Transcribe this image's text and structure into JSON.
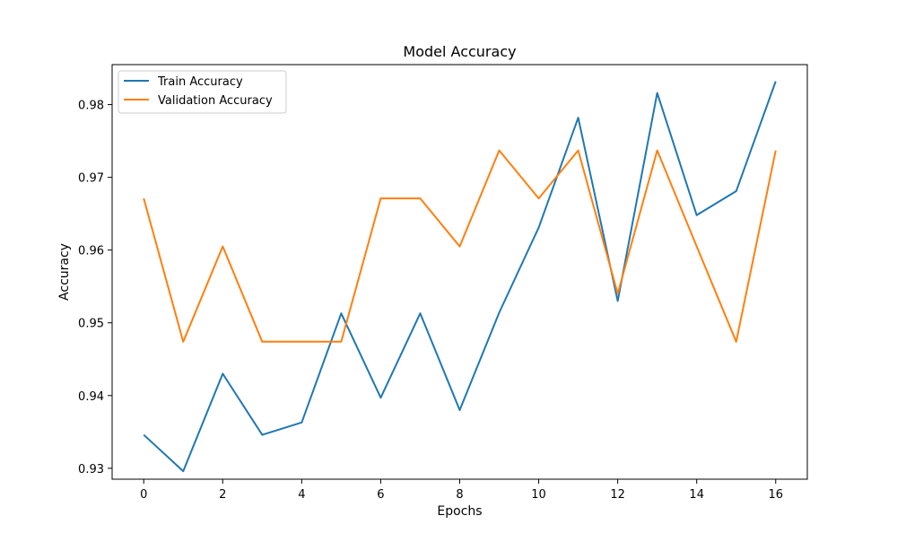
{
  "chart_data": {
    "type": "line",
    "title": "Model Accuracy",
    "xlabel": "Epochs",
    "ylabel": "Accuracy",
    "x": [
      0,
      1,
      2,
      3,
      4,
      5,
      6,
      7,
      8,
      9,
      10,
      11,
      12,
      13,
      14,
      15,
      16
    ],
    "xlim": [
      -0.8,
      16.8
    ],
    "ylim": [
      0.9285,
      0.9855
    ],
    "xticks": [
      0,
      2,
      4,
      6,
      8,
      10,
      12,
      14,
      16
    ],
    "xtick_labels": [
      "0",
      "2",
      "4",
      "6",
      "8",
      "10",
      "12",
      "14",
      "16"
    ],
    "yticks": [
      0.93,
      0.94,
      0.95,
      0.96,
      0.97,
      0.98
    ],
    "ytick_labels": [
      "0.93",
      "0.94",
      "0.95",
      "0.96",
      "0.97",
      "0.98"
    ],
    "grid": false,
    "legend_position": "top-left",
    "series": [
      {
        "name": "Train Accuracy",
        "color": "#1f77b4",
        "values": [
          0.9346,
          0.9296,
          0.943,
          0.9346,
          0.9363,
          0.9513,
          0.9397,
          0.9513,
          0.938,
          0.9514,
          0.9631,
          0.9782,
          0.953,
          0.9816,
          0.9648,
          0.9681,
          0.9832
        ]
      },
      {
        "name": "Validation Accuracy",
        "color": "#ff7f0e",
        "values": [
          0.9671,
          0.9474,
          0.9605,
          0.9474,
          0.9474,
          0.9474,
          0.9671,
          0.9671,
          0.9605,
          0.9737,
          0.9671,
          0.9737,
          0.954,
          0.9737,
          0.9605,
          0.9474,
          0.9737
        ]
      }
    ]
  }
}
